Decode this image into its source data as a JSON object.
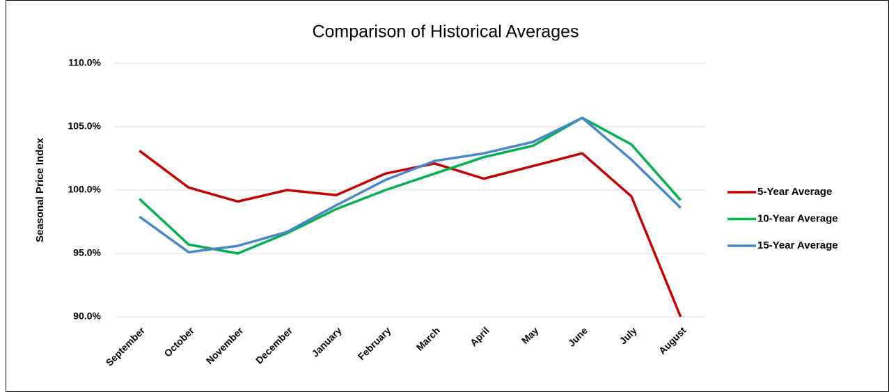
{
  "chart_data": {
    "type": "line",
    "title": "Comparison of Historical Averages",
    "y_label": "Seasonal Price Index",
    "categories": [
      "September",
      "October",
      "November",
      "December",
      "January",
      "February",
      "March",
      "April",
      "May",
      "June",
      "July",
      "August"
    ],
    "series": [
      {
        "name": "5-Year Average",
        "color": "#c00000",
        "values": [
          103.1,
          100.2,
          99.1,
          100.0,
          99.6,
          101.3,
          102.1,
          100.9,
          101.9,
          102.9,
          99.5,
          90.0
        ]
      },
      {
        "name": "10-Year Average",
        "color": "#00b050",
        "values": [
          99.3,
          95.7,
          95.0,
          96.6,
          98.5,
          100.0,
          101.3,
          102.6,
          103.5,
          105.7,
          103.6,
          99.2
        ]
      },
      {
        "name": "15-Year Average",
        "color": "#4a86c8",
        "values": [
          97.9,
          95.1,
          95.6,
          96.7,
          98.8,
          100.8,
          102.3,
          102.9,
          103.8,
          105.7,
          102.4,
          98.6
        ]
      }
    ],
    "ylim": [
      90,
      110
    ],
    "yticks": [
      {
        "value": 90,
        "label": "90.0%"
      },
      {
        "value": 95,
        "label": "95.0%"
      },
      {
        "value": 100,
        "label": "100.0%"
      },
      {
        "value": 105,
        "label": "105.0%"
      },
      {
        "value": 110,
        "label": "110.0%"
      }
    ],
    "grid": true,
    "legend": "right"
  }
}
